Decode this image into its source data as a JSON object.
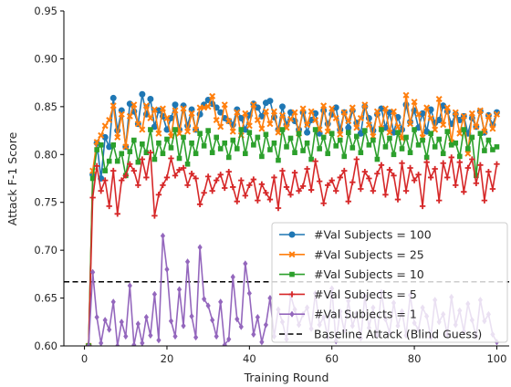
{
  "chart_data": {
    "type": "line",
    "xlabel": "Training Round",
    "ylabel": "Attack F-1 Score",
    "xlim": [
      -5,
      103
    ],
    "ylim": [
      0.6,
      0.95
    ],
    "xticks": [
      0,
      20,
      40,
      60,
      80,
      100
    ],
    "yticks": [
      0.6,
      0.65,
      0.7,
      0.75,
      0.8,
      0.85,
      0.9,
      0.95
    ],
    "xtick_labels": [
      "0",
      "20",
      "40",
      "60",
      "80",
      "100"
    ],
    "ytick_labels": [
      "0.60",
      "0.65",
      "0.70",
      "0.75",
      "0.80",
      "0.85",
      "0.90",
      "0.95"
    ],
    "grid": false,
    "legend_position": "lower right",
    "baseline": {
      "name": "Baseline Attack (Blind Guess)",
      "y": 0.667,
      "color": "#000000",
      "style": "dashed"
    },
    "x": [
      1,
      2,
      3,
      4,
      5,
      6,
      7,
      8,
      9,
      10,
      11,
      12,
      13,
      14,
      15,
      16,
      17,
      18,
      19,
      20,
      21,
      22,
      23,
      24,
      25,
      26,
      27,
      28,
      29,
      30,
      31,
      32,
      33,
      34,
      35,
      36,
      37,
      38,
      39,
      40,
      41,
      42,
      43,
      44,
      45,
      46,
      47,
      48,
      49,
      50,
      51,
      52,
      53,
      54,
      55,
      56,
      57,
      58,
      59,
      60,
      61,
      62,
      63,
      64,
      65,
      66,
      67,
      68,
      69,
      70,
      71,
      72,
      73,
      74,
      75,
      76,
      77,
      78,
      79,
      80,
      81,
      82,
      83,
      84,
      85,
      86,
      87,
      88,
      89,
      90,
      91,
      92,
      93,
      94,
      95,
      96,
      97,
      98,
      99,
      100
    ],
    "series": [
      {
        "name": "#Val Subjects = 100",
        "color": "#1f77b4",
        "marker": "circle",
        "values": [
          0.6,
          0.779,
          0.812,
          0.775,
          0.818,
          0.808,
          0.859,
          0.825,
          0.846,
          0.808,
          0.853,
          0.845,
          0.832,
          0.863,
          0.842,
          0.858,
          0.829,
          0.846,
          0.84,
          0.826,
          0.838,
          0.852,
          0.826,
          0.851,
          0.83,
          0.847,
          0.826,
          0.842,
          0.852,
          0.857,
          0.853,
          0.849,
          0.844,
          0.838,
          0.835,
          0.831,
          0.847,
          0.838,
          0.826,
          0.841,
          0.853,
          0.849,
          0.84,
          0.854,
          0.856,
          0.839,
          0.826,
          0.85,
          0.831,
          0.844,
          0.835,
          0.826,
          0.844,
          0.823,
          0.836,
          0.843,
          0.822,
          0.846,
          0.832,
          0.842,
          0.849,
          0.826,
          0.844,
          0.828,
          0.846,
          0.833,
          0.822,
          0.85,
          0.838,
          0.825,
          0.842,
          0.848,
          0.828,
          0.844,
          0.823,
          0.839,
          0.826,
          0.852,
          0.834,
          0.846,
          0.828,
          0.843,
          0.824,
          0.847,
          0.833,
          0.836,
          0.851,
          0.845,
          0.832,
          0.842,
          0.836,
          0.84,
          0.822,
          0.838,
          0.829,
          0.845,
          0.823,
          0.841,
          0.831,
          0.844
        ]
      },
      {
        "name": "#Val Subjects = 25",
        "color": "#ff7f0e",
        "marker": "x",
        "values": [
          0.6,
          0.783,
          0.813,
          0.82,
          0.83,
          0.836,
          0.851,
          0.818,
          0.842,
          0.808,
          0.84,
          0.852,
          0.832,
          0.826,
          0.851,
          0.838,
          0.847,
          0.822,
          0.848,
          0.838,
          0.819,
          0.846,
          0.822,
          0.848,
          0.824,
          0.843,
          0.826,
          0.849,
          0.849,
          0.85,
          0.861,
          0.836,
          0.829,
          0.852,
          0.835,
          0.824,
          0.844,
          0.82,
          0.843,
          0.83,
          0.852,
          0.836,
          0.827,
          0.845,
          0.832,
          0.845,
          0.823,
          0.841,
          0.828,
          0.837,
          0.844,
          0.822,
          0.848,
          0.831,
          0.845,
          0.836,
          0.826,
          0.851,
          0.824,
          0.848,
          0.838,
          0.821,
          0.844,
          0.835,
          0.849,
          0.828,
          0.838,
          0.852,
          0.831,
          0.819,
          0.845,
          0.827,
          0.848,
          0.823,
          0.845,
          0.829,
          0.817,
          0.862,
          0.832,
          0.855,
          0.842,
          0.818,
          0.849,
          0.838,
          0.826,
          0.858,
          0.831,
          0.849,
          0.813,
          0.844,
          0.822,
          0.84,
          0.801,
          0.843,
          0.829,
          0.846,
          0.824,
          0.84,
          0.827,
          0.842
        ]
      },
      {
        "name": "#Val Subjects = 10",
        "color": "#2ca02c",
        "marker": "square",
        "values": [
          0.6,
          0.775,
          0.805,
          0.81,
          0.783,
          0.793,
          0.81,
          0.793,
          0.801,
          0.778,
          0.803,
          0.815,
          0.792,
          0.811,
          0.802,
          0.826,
          0.795,
          0.812,
          0.801,
          0.816,
          0.807,
          0.826,
          0.796,
          0.818,
          0.79,
          0.812,
          0.801,
          0.822,
          0.809,
          0.825,
          0.802,
          0.818,
          0.806,
          0.812,
          0.797,
          0.815,
          0.806,
          0.826,
          0.801,
          0.823,
          0.81,
          0.818,
          0.798,
          0.821,
          0.805,
          0.812,
          0.794,
          0.826,
          0.808,
          0.817,
          0.802,
          0.822,
          0.804,
          0.812,
          0.795,
          0.826,
          0.806,
          0.818,
          0.801,
          0.822,
          0.809,
          0.815,
          0.798,
          0.823,
          0.807,
          0.819,
          0.802,
          0.825,
          0.81,
          0.815,
          0.795,
          0.826,
          0.808,
          0.817,
          0.8,
          0.823,
          0.806,
          0.818,
          0.802,
          0.826,
          0.81,
          0.815,
          0.797,
          0.822,
          0.808,
          0.816,
          0.801,
          0.824,
          0.81,
          0.812,
          0.798,
          0.826,
          0.806,
          0.818,
          0.778,
          0.822,
          0.804,
          0.815,
          0.805,
          0.808
        ]
      },
      {
        "name": "#Val Subjects = 5",
        "color": "#d62728",
        "marker": "plus",
        "values": [
          0.6,
          0.755,
          0.788,
          0.762,
          0.773,
          0.746,
          0.783,
          0.738,
          0.773,
          0.778,
          0.79,
          0.783,
          0.768,
          0.795,
          0.776,
          0.802,
          0.736,
          0.758,
          0.768,
          0.776,
          0.796,
          0.778,
          0.784,
          0.786,
          0.768,
          0.78,
          0.775,
          0.748,
          0.76,
          0.777,
          0.762,
          0.773,
          0.779,
          0.765,
          0.782,
          0.766,
          0.751,
          0.773,
          0.757,
          0.768,
          0.774,
          0.752,
          0.769,
          0.76,
          0.753,
          0.776,
          0.744,
          0.783,
          0.766,
          0.758,
          0.781,
          0.762,
          0.767,
          0.785,
          0.763,
          0.793,
          0.772,
          0.749,
          0.768,
          0.773,
          0.762,
          0.776,
          0.783,
          0.751,
          0.771,
          0.795,
          0.764,
          0.782,
          0.775,
          0.762,
          0.78,
          0.789,
          0.758,
          0.784,
          0.778,
          0.753,
          0.791,
          0.762,
          0.786,
          0.773,
          0.779,
          0.746,
          0.792,
          0.776,
          0.785,
          0.752,
          0.791,
          0.776,
          0.797,
          0.768,
          0.792,
          0.761,
          0.786,
          0.795,
          0.77,
          0.789,
          0.752,
          0.782,
          0.764,
          0.79
        ]
      },
      {
        "name": "#Val Subjects = 1",
        "color": "#9467bd",
        "marker": "diamond",
        "values": [
          0.6,
          0.677,
          0.63,
          0.603,
          0.627,
          0.617,
          0.646,
          0.6,
          0.625,
          0.61,
          0.663,
          0.601,
          0.623,
          0.603,
          0.63,
          0.611,
          0.654,
          0.606,
          0.715,
          0.68,
          0.626,
          0.61,
          0.659,
          0.621,
          0.688,
          0.631,
          0.609,
          0.703,
          0.649,
          0.642,
          0.627,
          0.61,
          0.646,
          0.601,
          0.607,
          0.672,
          0.628,
          0.62,
          0.686,
          0.655,
          0.612,
          0.63,
          0.604,
          0.622,
          0.65,
          0.61,
          0.638,
          0.625,
          0.607,
          0.653,
          0.638,
          0.622,
          0.633,
          0.64,
          0.618,
          0.655,
          0.622,
          0.63,
          0.609,
          0.66,
          0.605,
          0.636,
          0.616,
          0.647,
          0.621,
          0.634,
          0.608,
          0.652,
          0.619,
          0.64,
          0.611,
          0.656,
          0.628,
          0.614,
          0.645,
          0.621,
          0.636,
          0.611,
          0.653,
          0.624,
          0.617,
          0.64,
          0.631,
          0.609,
          0.648,
          0.625,
          0.633,
          0.612,
          0.651,
          0.622,
          0.637,
          0.615,
          0.644,
          0.627,
          0.61,
          0.648,
          0.626,
          0.633,
          0.612,
          0.604
        ]
      }
    ]
  }
}
